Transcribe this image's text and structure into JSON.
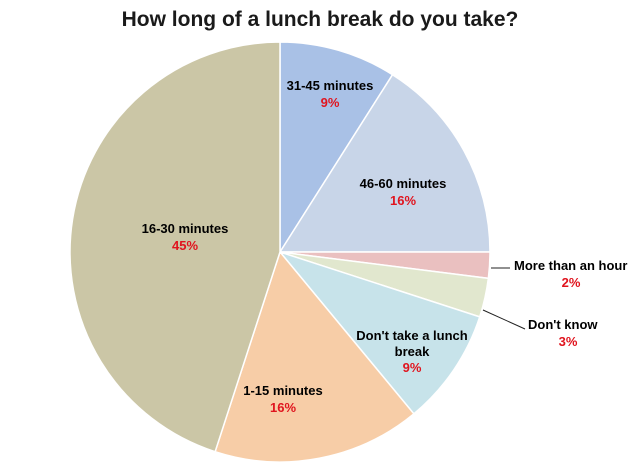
{
  "chart_data": {
    "type": "pie",
    "title": "How long of a lunch break do you take?",
    "slices": [
      {
        "label": "31-45 minutes",
        "value": 9,
        "value_label": "9%",
        "color": "#a9c1e6"
      },
      {
        "label": "46-60 minutes",
        "value": 16,
        "value_label": "16%",
        "color": "#c8d5e8"
      },
      {
        "label": "More than an hour",
        "value": 2,
        "value_label": "2%",
        "color": "#eac0c0"
      },
      {
        "label": "Don't know",
        "value": 3,
        "value_label": "3%",
        "color": "#e1e7ce"
      },
      {
        "label": "Don't take a lunch break",
        "value": 9,
        "value_label": "9%",
        "color": "#c7e3ea"
      },
      {
        "label": "1-15 minutes",
        "value": 16,
        "value_label": "16%",
        "color": "#f7cda7"
      },
      {
        "label": "16-30 minutes",
        "value": 45,
        "value_label": "45%",
        "color": "#cbc6a6"
      }
    ],
    "value_label_color": "#e0141e",
    "start_angle_deg": 0,
    "direction": "clockwise"
  }
}
